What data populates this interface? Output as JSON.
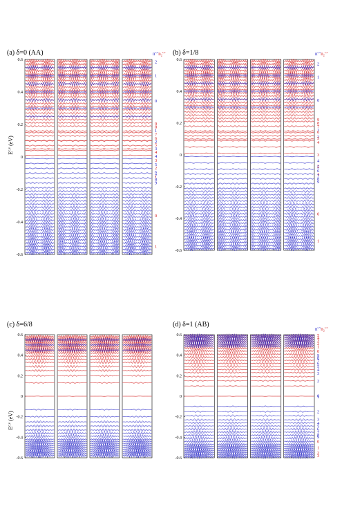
{
  "figure": {
    "colors": {
      "conduction": "#d42020",
      "valence": "#2929c8",
      "frame": "#000000"
    },
    "chart_data": [
      {
        "type": "line",
        "title": "(a) δ=0 (AA)",
        "ylabel": "Ec,v (eV)",
        "ylim": [
          -0.6,
          0.6
        ],
        "yticks": [
          "0.6",
          "0.4",
          "0.2",
          "0",
          "-0.2",
          "-0.4",
          "-0.6"
        ],
        "legend": {
          "main": "n",
          "sup1": "c,v",
          "mid": "n",
          "sub": "2",
          "sup2": "c,v"
        },
        "levels_conduction": [
          0.01,
          0.04,
          0.07,
          0.1,
          0.13,
          0.16,
          0.19,
          0.21,
          0.23,
          0.25,
          0.27,
          0.29,
          0.31,
          0.33,
          0.35,
          0.37,
          0.39,
          0.41,
          0.43,
          0.45,
          0.47,
          0.49,
          0.51,
          0.53,
          0.55,
          0.57,
          0.59
        ],
        "levels_valence": [
          -0.01,
          -0.04,
          -0.07,
          -0.1,
          -0.13,
          -0.16,
          -0.19,
          -0.21,
          -0.23,
          -0.25,
          -0.27,
          -0.29,
          -0.31,
          -0.33,
          -0.35,
          -0.37,
          -0.39,
          -0.41,
          -0.43,
          -0.45,
          -0.47,
          -0.49,
          -0.51,
          -0.53,
          -0.55,
          -0.57,
          -0.59
        ],
        "cross_conduction": [
          0.55,
          0.5,
          0.45,
          0.4,
          0.35,
          0.3,
          0.25
        ],
        "cross_valence": [
          0.15,
          0.1,
          0.05
        ],
        "labels": [
          {
            "text": "2",
            "y": 0.585,
            "color": "blue"
          },
          {
            "text": "1",
            "y": 0.5,
            "color": "blue"
          },
          {
            "text": "0",
            "y": 0.345,
            "color": "blue"
          },
          {
            "text": "9",
            "y": 0.205,
            "color": "red"
          },
          {
            "text": "8",
            "y": 0.185,
            "color": "red"
          },
          {
            "text": "1",
            "y": 0.162,
            "color": "blue"
          },
          {
            "text": "7",
            "y": 0.14,
            "color": "red"
          },
          {
            "text": "6",
            "y": 0.115,
            "color": "red"
          },
          {
            "text": "2",
            "y": 0.095,
            "color": "blue"
          },
          {
            "text": "5",
            "y": 0.075,
            "color": "red"
          },
          {
            "text": "3",
            "y": 0.052,
            "color": "blue"
          },
          {
            "text": "4",
            "y": 0.03,
            "color": "red"
          },
          {
            "text": "4",
            "y": 0.005,
            "color": "blue"
          },
          {
            "text": "3",
            "y": -0.02,
            "color": "red"
          },
          {
            "text": "5",
            "y": -0.045,
            "color": "blue"
          },
          {
            "text": "2",
            "y": -0.068,
            "color": "red"
          },
          {
            "text": "6",
            "y": -0.092,
            "color": "blue"
          },
          {
            "text": "7",
            "y": -0.115,
            "color": "blue"
          },
          {
            "text": "1",
            "y": -0.12,
            "color": "red"
          },
          {
            "text": "8",
            "y": -0.137,
            "color": "blue"
          },
          {
            "text": "9",
            "y": -0.158,
            "color": "blue"
          },
          {
            "text": "0",
            "y": -0.36,
            "color": "red"
          },
          {
            "text": "1",
            "y": -0.55,
            "color": "red"
          }
        ],
        "yaxis_ticks": true
      },
      {
        "type": "line",
        "title": "(b) δ=1/8",
        "ylabel": "",
        "ylim": [
          -0.6,
          0.6
        ],
        "yticks": [
          "0.6",
          "0.4",
          "0.2",
          "0",
          "-0.2",
          "-0.4",
          "-0.6"
        ],
        "legend": {
          "main": "n",
          "sup1": "c,v",
          "mid": "n",
          "sub": "2",
          "sup2": "c,v"
        },
        "levels_conduction": [
          0.01,
          0.05,
          0.09,
          0.12,
          0.15,
          0.18,
          0.21,
          0.23,
          0.25,
          0.27,
          0.29,
          0.31,
          0.33,
          0.35,
          0.37,
          0.39,
          0.41,
          0.43,
          0.45,
          0.47,
          0.49,
          0.51,
          0.53,
          0.55,
          0.57,
          0.59
        ],
        "levels_valence": [
          -0.01,
          -0.05,
          -0.09,
          -0.12,
          -0.15,
          -0.18,
          -0.21,
          -0.23,
          -0.25,
          -0.27,
          -0.29,
          -0.31,
          -0.33,
          -0.35,
          -0.37,
          -0.39,
          -0.41,
          -0.43,
          -0.45,
          -0.47,
          -0.49,
          -0.51,
          -0.53,
          -0.55,
          -0.57,
          -0.59
        ],
        "cross_conduction": [
          0.55,
          0.5,
          0.45,
          0.4,
          0.35,
          0.3
        ],
        "cross_valence": [
          0.14,
          0.1
        ],
        "labels": [
          {
            "text": "2",
            "y": 0.572,
            "color": "blue"
          },
          {
            "text": "1",
            "y": 0.49,
            "color": "blue"
          },
          {
            "text": "0",
            "y": 0.345,
            "color": "blue"
          },
          {
            "text": "9",
            "y": 0.222,
            "color": "red"
          },
          {
            "text": "8",
            "y": 0.2,
            "color": "red"
          },
          {
            "text": "7",
            "y": 0.18,
            "color": "red"
          },
          {
            "text": "1",
            "y": 0.158,
            "color": "blue"
          },
          {
            "text": "6",
            "y": 0.145,
            "color": "red"
          },
          {
            "text": "2",
            "y": 0.115,
            "color": "blue"
          },
          {
            "text": "5",
            "y": 0.105,
            "color": "red"
          },
          {
            "text": "4",
            "y": 0.08,
            "color": "red"
          },
          {
            "text": "3",
            "y": 0.0,
            "color": "red"
          },
          {
            "text": "4",
            "y": -0.035,
            "color": "blue"
          },
          {
            "text": "2",
            "y": -0.07,
            "color": "red"
          },
          {
            "text": "5",
            "y": -0.075,
            "color": "blue"
          },
          {
            "text": "6",
            "y": -0.1,
            "color": "blue"
          },
          {
            "text": "1",
            "y": -0.12,
            "color": "red"
          },
          {
            "text": "7",
            "y": -0.13,
            "color": "blue"
          },
          {
            "text": "8",
            "y": -0.15,
            "color": "blue"
          },
          {
            "text": "9",
            "y": -0.168,
            "color": "blue"
          },
          {
            "text": "0",
            "y": -0.37,
            "color": "red"
          },
          {
            "text": "1",
            "y": -0.54,
            "color": "red"
          }
        ],
        "yaxis_ticks": false
      },
      {
        "type": "line",
        "title": "(c) δ=6/8",
        "ylabel": "Ec,v (eV)",
        "ylim": [
          -0.6,
          0.6
        ],
        "yticks": [
          "0.6",
          "0.4",
          "0.2",
          "0",
          "-0.2",
          "-0.4",
          "-0.6"
        ],
        "legend": null,
        "levels_conduction": [
          0.0,
          0.13,
          0.2,
          0.25,
          0.29,
          0.33,
          0.36,
          0.39,
          0.42,
          0.44,
          0.46,
          0.48,
          0.5,
          0.52,
          0.54,
          0.56,
          0.58
        ],
        "levels_valence": [
          -0.13,
          -0.2,
          -0.25,
          -0.29,
          -0.33,
          -0.36,
          -0.39,
          -0.42,
          -0.44,
          -0.46,
          -0.48,
          -0.5,
          -0.52,
          -0.54,
          -0.56,
          -0.58
        ],
        "cross_conduction": [
          0.55,
          0.5,
          0.45
        ],
        "cross_valence": [],
        "labels": [],
        "yaxis_ticks": true
      },
      {
        "type": "line",
        "title": "(d) δ=1 (AB)",
        "ylabel": "",
        "ylim": [
          -0.6,
          0.6
        ],
        "yticks": [
          "0.6",
          "0.4",
          "0.2",
          "0",
          "-0.2",
          "-0.4",
          "-0.6"
        ],
        "legend": {
          "main": "n",
          "sup1": "c,v",
          "mid": "n",
          "sub": "2",
          "sup2": "c,v"
        },
        "levels_conduction": [
          0.0,
          0.1,
          0.15,
          0.19,
          0.23,
          0.26,
          0.29,
          0.32,
          0.35,
          0.38,
          0.41,
          0.44,
          0.47,
          0.49,
          0.51,
          0.53,
          0.55,
          0.57,
          0.59
        ],
        "levels_valence": [
          -0.1,
          -0.15,
          -0.19,
          -0.23,
          -0.26,
          -0.29,
          -0.32,
          -0.35,
          -0.38,
          -0.41,
          -0.44,
          -0.47,
          -0.49,
          -0.51,
          -0.53,
          -0.55,
          -0.57,
          -0.59
        ],
        "cross_conduction": [
          0.59,
          0.57,
          0.55,
          0.53,
          0.51,
          0.49
        ],
        "cross_valence": [],
        "labels": [
          {
            "text": "5",
            "y": 0.595,
            "color": "red"
          },
          {
            "text": "4",
            "y": 0.57,
            "color": "red"
          },
          {
            "text": "3",
            "y": 0.545,
            "color": "red"
          },
          {
            "text": "2",
            "y": 0.515,
            "color": "red"
          },
          {
            "text": "1",
            "y": 0.485,
            "color": "red"
          },
          {
            "text": "0",
            "y": 0.44,
            "color": "red"
          },
          {
            "text": "9",
            "y": 0.4,
            "color": "blue"
          },
          {
            "text": "8",
            "y": 0.375,
            "color": "blue"
          },
          {
            "text": "7",
            "y": 0.35,
            "color": "blue"
          },
          {
            "text": "6",
            "y": 0.32,
            "color": "blue"
          },
          {
            "text": "5",
            "y": 0.29,
            "color": "blue"
          },
          {
            "text": "4",
            "y": 0.26,
            "color": "blue"
          },
          {
            "text": "3",
            "y": 0.225,
            "color": "blue"
          },
          {
            "text": "2",
            "y": 0.15,
            "color": "blue"
          },
          {
            "text": "0",
            "y": 0.005,
            "color": "blue"
          },
          {
            "text": "1",
            "y": -0.005,
            "color": "blue"
          },
          {
            "text": "2",
            "y": -0.15,
            "color": "blue"
          },
          {
            "text": "3",
            "y": -0.225,
            "color": "blue"
          },
          {
            "text": "4",
            "y": -0.26,
            "color": "blue"
          },
          {
            "text": "5",
            "y": -0.29,
            "color": "blue"
          },
          {
            "text": "6",
            "y": -0.32,
            "color": "blue"
          },
          {
            "text": "7",
            "y": -0.35,
            "color": "blue"
          },
          {
            "text": "8",
            "y": -0.375,
            "color": "blue"
          },
          {
            "text": "9",
            "y": -0.395,
            "color": "blue"
          },
          {
            "text": "0",
            "y": -0.44,
            "color": "red"
          },
          {
            "text": "1",
            "y": -0.5,
            "color": "red"
          },
          {
            "text": "2",
            "y": -0.55,
            "color": "red"
          },
          {
            "text": "3",
            "y": -0.58,
            "color": "red"
          }
        ],
        "yaxis_ticks": true
      }
    ]
  }
}
